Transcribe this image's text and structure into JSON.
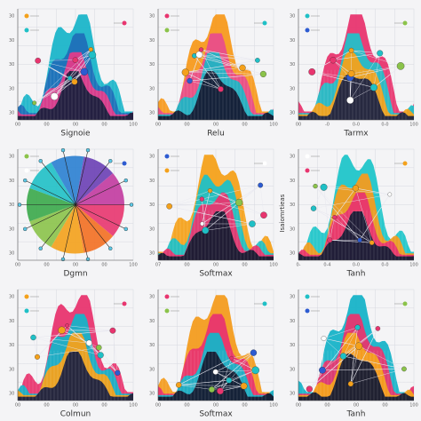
{
  "panels": [
    {
      "label": "Signoie",
      "x_ticks": [
        "00",
        "00",
        "00",
        "00",
        "100"
      ],
      "y_ticks": [
        "30",
        "30",
        "30",
        "30",
        "30"
      ]
    },
    {
      "label": "Relu",
      "x_ticks": [
        "00",
        "00",
        "00",
        "00",
        "100"
      ],
      "y_ticks": [
        "30",
        "30",
        "30",
        "30",
        "30"
      ]
    },
    {
      "label": "Tarmx",
      "x_ticks": [
        "00",
        "-0",
        "0-0",
        "0-0",
        "100"
      ],
      "y_ticks": [
        "30",
        "30",
        "30",
        "30",
        "30"
      ]
    },
    {
      "label": "Dgmn",
      "x_ticks": [
        "00",
        "00",
        "00",
        "00",
        "100"
      ],
      "y_ticks": [
        "30",
        "30",
        "30",
        "30",
        "30"
      ]
    },
    {
      "label": "Softmax",
      "x_ticks": [
        "07",
        "00",
        "00",
        "00",
        "100"
      ],
      "y_ticks": [
        "30",
        "30",
        "30",
        "30",
        "30"
      ]
    },
    {
      "label": "Tanh",
      "x_ticks": [
        "0-",
        "0-4",
        "0-0",
        "0-0",
        "100"
      ],
      "y_ticks": [
        "30",
        "30",
        "30",
        "30",
        "30"
      ]
    },
    {
      "label": "Colmun",
      "x_ticks": [
        "00",
        "00",
        "00",
        "00",
        "100"
      ],
      "y_ticks": [
        "30",
        "30",
        "30",
        "30",
        "30"
      ]
    },
    {
      "label": "Softmax",
      "x_ticks": [
        "00",
        "00",
        "00",
        "00",
        "100"
      ],
      "y_ticks": [
        "30",
        "30",
        "30",
        "30",
        "30"
      ]
    },
    {
      "label": "Tanh",
      "x_ticks": [
        "00",
        "00",
        "00",
        "00",
        "100"
      ],
      "y_ticks": [
        "30",
        "30",
        "30",
        "30",
        "30"
      ]
    }
  ],
  "side_label": "Isaiomrtieas"
}
